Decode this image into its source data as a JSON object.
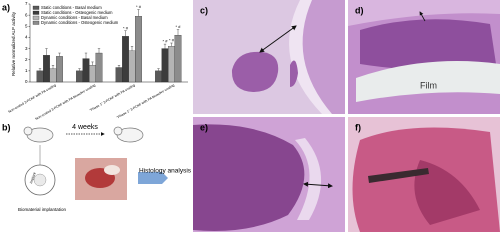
{
  "chart_data": {
    "type": "bar",
    "panel_label": "a)",
    "ylabel": "Relative normalized ALP activity",
    "categories": [
      "Non-coated 3-PCKF with PA coating",
      "Non-coated 3-PCKF with PA bioactive coating",
      "\"Phase 1\" 3-PCKF with PA coating",
      "\"Phase 1\" 3-PCKF with PA bioactive coating"
    ],
    "series": [
      {
        "name": "Static conditions - Basal medium",
        "color": "#5a5a5a",
        "values": [
          1.0,
          1.0,
          1.3,
          1.0
        ],
        "errors": [
          0.2,
          0.2,
          0.2,
          0.2
        ]
      },
      {
        "name": "Static conditions - Osteogenic medium",
        "color": "#3c3c3c",
        "values": [
          2.4,
          2.1,
          4.1,
          3.0
        ],
        "errors": [
          0.6,
          0.5,
          0.5,
          0.4
        ]
      },
      {
        "name": "Dynamic conditions - Basal medium",
        "color": "#b4b4b4",
        "values": [
          1.2,
          1.5,
          2.8,
          3.2
        ],
        "errors": [
          0.3,
          0.3,
          0.4,
          0.3
        ]
      },
      {
        "name": "Dynamic conditions - Osteogenic medium",
        "color": "#8c8c8c",
        "values": [
          2.3,
          2.6,
          5.9,
          4.2
        ],
        "errors": [
          0.3,
          0.4,
          0.6,
          0.5
        ]
      }
    ],
    "annotations": [
      {
        "text": "* #",
        "series": 1,
        "category": 2
      },
      {
        "text": "* #",
        "series": 3,
        "category": 2
      },
      {
        "text": "* #",
        "series": 1,
        "category": 3
      },
      {
        "text": "* #",
        "series": 2,
        "category": 3
      },
      {
        "text": "* #",
        "series": 3,
        "category": 3
      }
    ],
    "ylim": [
      0,
      7
    ],
    "yticks": [
      0,
      1,
      2,
      3,
      4,
      5,
      6,
      7
    ]
  },
  "panels": {
    "b": {
      "label": "b)",
      "time": "4 weeks",
      "analysis": "Histology analysis",
      "implant": "Implant",
      "implantation": "Biomaterial implantation"
    },
    "c": {
      "label": "c)"
    },
    "d": {
      "label": "d)",
      "film": "Film"
    },
    "e": {
      "label": "e)"
    },
    "f": {
      "label": "f)"
    }
  }
}
